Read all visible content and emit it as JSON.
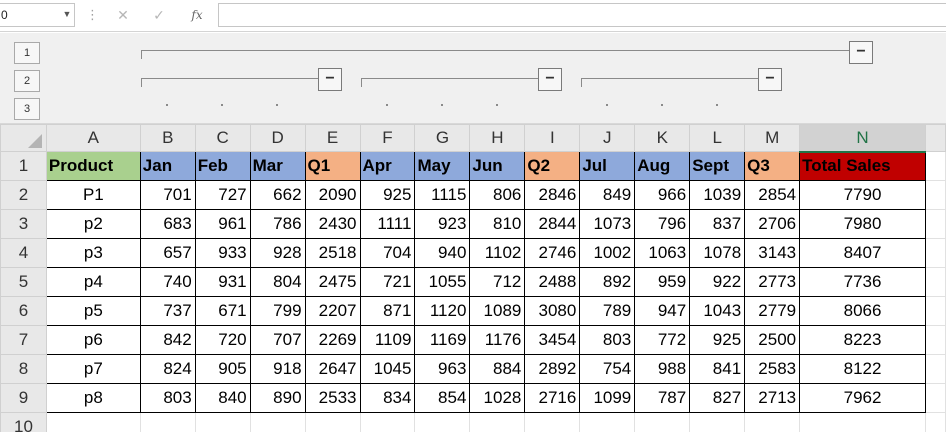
{
  "formula_bar": {
    "name_box_value": "0",
    "cancel_icon": "cancel-icon",
    "enter_icon": "check-icon",
    "fx_label": "fx",
    "formula_value": ""
  },
  "outline": {
    "levels": [
      "1",
      "2",
      "3"
    ],
    "collapse_label": "−"
  },
  "columns": [
    "A",
    "B",
    "C",
    "D",
    "E",
    "F",
    "G",
    "H",
    "I",
    "J",
    "K",
    "L",
    "M",
    "N"
  ],
  "selected_column": "N",
  "header_row": [
    "Product",
    "Jan",
    "Feb",
    "Mar",
    "Q1",
    "Apr",
    "May",
    "Jun",
    "Q2",
    "Jul",
    "Aug",
    "Sept",
    "Q3",
    "Total Sales"
  ],
  "header_colors": {
    "product": "#a9d08e",
    "month": "#8ea9db",
    "quarter": "#f4b084",
    "total": "#c00000"
  },
  "rows": [
    {
      "row": "2",
      "cells": [
        "P1",
        "701",
        "727",
        "662",
        "2090",
        "925",
        "1115",
        "806",
        "2846",
        "849",
        "966",
        "1039",
        "2854",
        "7790"
      ]
    },
    {
      "row": "3",
      "cells": [
        "p2",
        "683",
        "961",
        "786",
        "2430",
        "1111",
        "923",
        "810",
        "2844",
        "1073",
        "796",
        "837",
        "2706",
        "7980"
      ]
    },
    {
      "row": "4",
      "cells": [
        "p3",
        "657",
        "933",
        "928",
        "2518",
        "704",
        "940",
        "1102",
        "2746",
        "1002",
        "1063",
        "1078",
        "3143",
        "8407"
      ]
    },
    {
      "row": "5",
      "cells": [
        "p4",
        "740",
        "931",
        "804",
        "2475",
        "721",
        "1055",
        "712",
        "2488",
        "892",
        "959",
        "922",
        "2773",
        "7736"
      ]
    },
    {
      "row": "6",
      "cells": [
        "p5",
        "737",
        "671",
        "799",
        "2207",
        "871",
        "1120",
        "1089",
        "3080",
        "789",
        "947",
        "1043",
        "2779",
        "8066"
      ]
    },
    {
      "row": "7",
      "cells": [
        "p6",
        "842",
        "720",
        "707",
        "2269",
        "1109",
        "1169",
        "1176",
        "3454",
        "803",
        "772",
        "925",
        "2500",
        "8223"
      ]
    },
    {
      "row": "8",
      "cells": [
        "p7",
        "824",
        "905",
        "918",
        "2647",
        "1045",
        "963",
        "884",
        "2892",
        "754",
        "988",
        "841",
        "2583",
        "8122"
      ]
    },
    {
      "row": "9",
      "cells": [
        "p8",
        "803",
        "840",
        "890",
        "2533",
        "834",
        "854",
        "1028",
        "2716",
        "1099",
        "787",
        "827",
        "2713",
        "7962"
      ]
    }
  ],
  "header_row_number": "1",
  "partial_row_number": "10"
}
